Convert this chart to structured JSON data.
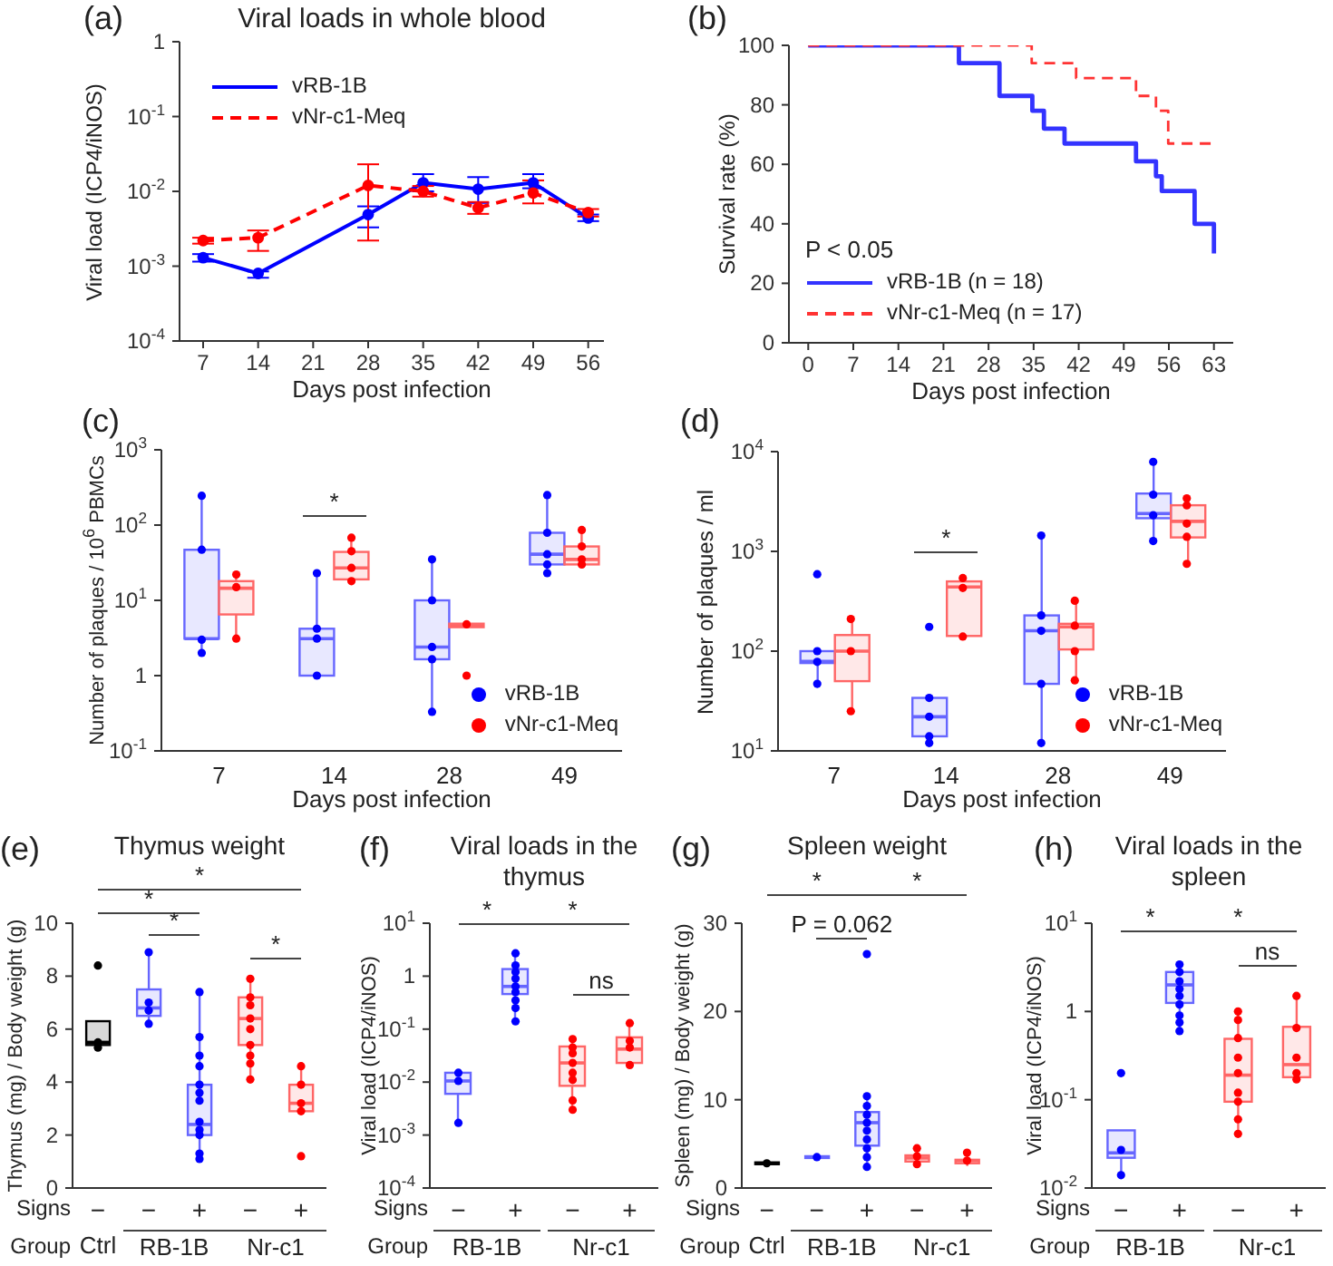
{
  "chart_data": [
    {
      "type": "line",
      "title": "Viral loads in whole blood",
      "xlabel": "Days post infection",
      "ylabel": "Viral load (ICP4/iNOS)",
      "log": true,
      "legend": "top left",
      "marker": "circle",
      "xlim": [
        4,
        58
      ],
      "xticks": [
        7,
        14,
        21,
        28,
        35,
        42,
        49,
        56
      ],
      "ylim": [
        0.0001,
        1
      ],
      "yticks": [
        {
          "value": 0.0001,
          "label": "10$^{-4}$"
        },
        {
          "value": 0.001,
          "label": "10$^{-3}$"
        },
        {
          "value": 0.01,
          "label": "10$^{-2}$"
        },
        {
          "value": 0.1,
          "label": "10$^{-1}$"
        },
        1
      ],
      "annotations": [
        "(a)"
      ],
      "series": [
        {
          "name": "vRB-1B",
          "color": "#0000ff",
          "line_style": "solid",
          "x": [
            7,
            14,
            28,
            35,
            42,
            49,
            56
          ],
          "values": [
            0.0013,
            0.0008,
            0.0049,
            0.013,
            0.0107,
            0.013,
            0.0044
          ],
          "errors": [
            [
              0.00115,
              0.00145
            ],
            [
              0.0007,
              0.00085
            ],
            [
              0.0033,
              0.0063
            ],
            [
              0.01,
              0.017
            ],
            [
              0.007,
              0.0155
            ],
            [
              0.011,
              0.017
            ],
            [
              0.004,
              0.0049
            ]
          ]
        },
        {
          "name": "vNr-c1-Meq",
          "color": "#ff0000",
          "line_style": "dashed",
          "x": [
            7,
            14,
            28,
            35,
            42,
            49,
            56
          ],
          "values": [
            0.0022,
            0.0024,
            0.012,
            0.01,
            0.006,
            0.0095,
            0.0052
          ],
          "errors": [
            [
              0.002,
              0.0024
            ],
            [
              0.0016,
              0.003
            ],
            [
              0.0022,
              0.023
            ],
            [
              0.0085,
              0.0118
            ],
            [
              0.005,
              0.0072
            ],
            [
              0.0069,
              0.014
            ],
            [
              0.0046,
              0.0058
            ]
          ]
        }
      ]
    },
    {
      "type": "step",
      "xlabel": "Days post infection",
      "ylabel": "Survival rate (%)",
      "legend": "bottom left",
      "xlim": [
        -3,
        66
      ],
      "xticks": [
        0,
        7,
        14,
        21,
        28,
        35,
        42,
        49,
        56,
        63
      ],
      "ylim": [
        0,
        100
      ],
      "yticks": [
        0,
        20,
        40,
        60,
        80,
        100
      ],
      "annotations": [
        "(b)",
        "P < 0.05"
      ],
      "series": [
        {
          "name": "vRB-1B (n = 18)",
          "color": "#3333ff",
          "line_style": "solid",
          "x": [
            0,
            23.4,
            29.7,
            34.8,
            36.6,
            39.8,
            50.9,
            54,
            54.9,
            60,
            63
          ],
          "values": [
            100,
            94,
            83,
            78,
            72,
            67,
            61,
            56,
            51,
            40,
            30
          ]
        },
        {
          "name": "vNr-c1-Meq (n = 17)",
          "color": "#ff3333",
          "line_style": "dashed",
          "x": [
            0,
            34.7,
            41.6,
            50.9,
            54,
            55.9,
            63
          ],
          "values": [
            100,
            94,
            89,
            83,
            78,
            67,
            67
          ]
        }
      ]
    },
    {
      "type": "box",
      "xlabel": "Days post infection",
      "ylabel": "Number of plaques / 10$^{6}$ PBMCs",
      "log": true,
      "legend": "bottom right",
      "marker": "circle",
      "categories": [
        "7",
        "14",
        "28",
        "49"
      ],
      "ylim": [
        0.1,
        1000
      ],
      "yticks": [
        {
          "value": 0.1,
          "label": "10$^{-1}$"
        },
        1,
        {
          "value": 10,
          "label": "10$^{1}$"
        },
        {
          "value": 100,
          "label": "10$^{2}$"
        },
        {
          "value": 1000,
          "label": "10$^{3}$"
        }
      ],
      "annotations": [
        "(c)",
        "*"
      ],
      "series": [
        {
          "type": "box",
          "color": "#6666ff",
          "boxes": [
            {
              "low": 2,
              "q1": 3.1,
              "median": 3.1,
              "q3": 47,
              "high": 245
            },
            {
              "low": 1,
              "q1": 1,
              "median": 3.1,
              "q3": 4.2,
              "high": 23
            },
            {
              "low": 0.33,
              "q1": 1.65,
              "median": 2.4,
              "q3": 10,
              "high": 35
            },
            {
              "low": 23,
              "q1": 30,
              "median": 41,
              "q3": 79,
              "high": 250
            }
          ]
        },
        {
          "type": "box",
          "color": "#ff6666",
          "boxes": [
            {
              "low": 3.1,
              "q1": 6.5,
              "median": 14.5,
              "q3": 18,
              "high": 22
            },
            {
              "low": 17,
              "q1": 19,
              "median": 27,
              "q3": 44,
              "high": 68
            },
            {
              "low": 4.3,
              "q1": 4.4,
              "median": 4.6,
              "q3": 4.9,
              "high": 5.2
            },
            {
              "low": 30,
              "q1": 30,
              "median": 35,
              "q3": 52,
              "high": 86
            }
          ]
        },
        {
          "type": "scatter",
          "name": "vRB-1B",
          "color": "#0000ff",
          "x": [
            "7",
            "7",
            "7",
            "7",
            "14",
            "14",
            "14",
            "14",
            "28",
            "28",
            "28",
            "28",
            "28",
            "49",
            "49",
            "49",
            "49",
            "49"
          ],
          "values": [
            245,
            47,
            3,
            2,
            23,
            4.2,
            3.1,
            1,
            35,
            10,
            2.4,
            1.65,
            0.33,
            250,
            79,
            41,
            30,
            23
          ]
        },
        {
          "type": "scatter",
          "name": "vNr-c1-Meq",
          "color": "#ff0000",
          "x": [
            "7",
            "7",
            "7",
            "14",
            "14",
            "14",
            "14",
            "28",
            "28",
            "49",
            "49",
            "49",
            "49"
          ],
          "values": [
            22,
            15,
            3.1,
            68,
            45,
            27,
            18,
            4.8,
            1,
            86,
            52,
            35,
            30
          ]
        }
      ]
    },
    {
      "type": "box",
      "xlabel": "Days post infection",
      "ylabel": "Number of plaques / ml",
      "log": true,
      "legend": "bottom right",
      "marker": "circle",
      "categories": [
        "7",
        "14",
        "28",
        "49"
      ],
      "ylim": [
        10,
        10000
      ],
      "yticks": [
        {
          "value": 10,
          "label": "10$^{1}$"
        },
        {
          "value": 100,
          "label": "10$^{2}$"
        },
        {
          "value": 1000,
          "label": "10$^{3}$"
        },
        {
          "value": 10000,
          "label": "10$^{4}$"
        }
      ],
      "annotations": [
        "(d)",
        "*"
      ],
      "series": [
        {
          "type": "box",
          "color": "#6666ff",
          "boxes": [
            {
              "low": 47,
              "q1": 76,
              "median": 79,
              "q3": 100,
              "high": 100
            },
            {
              "low": 12,
              "q1": 14,
              "median": 22,
              "q3": 34,
              "high": 34
            },
            {
              "low": 12,
              "q1": 47,
              "median": 160,
              "q3": 228,
              "high": 1440
            },
            {
              "low": 1270,
              "q1": 2150,
              "median": 2400,
              "q3": 3800,
              "high": 7900
            }
          ]
        },
        {
          "type": "box",
          "color": "#ff6666",
          "boxes": [
            {
              "low": 25,
              "q1": 50,
              "median": 100,
              "q3": 145,
              "high": 210
            },
            {
              "low": 132,
              "q1": 142,
              "median": 440,
              "q3": 500,
              "high": 560
            },
            {
              "low": 51,
              "q1": 104,
              "median": 175,
              "q3": 188,
              "high": 320
            },
            {
              "low": 750,
              "q1": 1380,
              "median": 2000,
              "q3": 2900,
              "high": 3500
            }
          ]
        },
        {
          "type": "scatter",
          "name": "vRB-1B",
          "color": "#0000ff",
          "x": [
            "7",
            "7",
            "7",
            "7",
            "14",
            "14",
            "14",
            "14",
            "14",
            "28",
            "28",
            "28",
            "28",
            "28",
            "49",
            "49",
            "49",
            "49"
          ],
          "values": [
            590,
            100,
            78,
            47,
            175,
            34,
            22,
            14,
            12,
            1440,
            228,
            160,
            47,
            12,
            7900,
            3700,
            2300,
            1270
          ]
        },
        {
          "type": "scatter",
          "name": "vNr-c1-Meq",
          "color": "#ff0000",
          "x": [
            "7",
            "7",
            "7",
            "14",
            "14",
            "14",
            "28",
            "28",
            "28",
            "28",
            "49",
            "49",
            "49",
            "49",
            "49"
          ],
          "values": [
            210,
            100,
            25,
            540,
            430,
            140,
            320,
            180,
            100,
            51,
            3400,
            2900,
            1900,
            1400,
            750
          ]
        }
      ]
    },
    {
      "type": "box",
      "title": "Thymus weight",
      "ylabel": "Thymus (mg) / Body weight (g)",
      "marker": "circle",
      "categories": [
        "−",
        "−",
        "+",
        "−",
        "+"
      ],
      "ylim": [
        0,
        10
      ],
      "yticks": [
        0,
        2,
        4,
        6,
        8,
        10
      ],
      "annotations": [
        "(e)",
        "*",
        "*",
        "*",
        "*",
        "Signs",
        "Group",
        "Ctrl",
        "RB-1B",
        "Nr-c1"
      ],
      "series": [
        {
          "type": "box",
          "colors": [
            "#000000",
            "#6666ff",
            "#6666ff",
            "#ff6666",
            "#ff6666"
          ],
          "boxes": [
            {
              "low": 5.3,
              "q1": 5.4,
              "median": 5.5,
              "q3": 6.3,
              "high": 6.3
            },
            {
              "low": 6.1,
              "q1": 6.5,
              "median": 6.8,
              "q3": 7.5,
              "high": 8.9
            },
            {
              "low": 1.1,
              "q1": 2,
              "median": 2.4,
              "q3": 3.9,
              "high": 7.4
            },
            {
              "low": 4.1,
              "q1": 5.4,
              "median": 6.4,
              "q3": 7.2,
              "high": 7.9
            },
            {
              "low": 2.9,
              "q1": 2.9,
              "median": 3.2,
              "q3": 3.9,
              "high": 4.6
            }
          ]
        },
        {
          "type": "scatter",
          "colors": [
            "#000000",
            "#0000ff",
            "#0000ff",
            "#ff0000",
            "#ff0000"
          ],
          "values": [
            8.4,
            8.9,
            7.4,
            7.9,
            4.6
          ]
        },
        {
          "type": "scatter",
          "colors": [
            "#000000",
            "#0000ff",
            "#0000ff",
            "#ff0000",
            "#ff0000"
          ],
          "values": [
            5.5,
            7,
            5.7,
            7.2,
            3.9
          ]
        },
        {
          "type": "scatter",
          "colors": [
            "#000000",
            "#0000ff",
            "#0000ff",
            "#ff0000",
            "#ff0000"
          ],
          "values": [
            5.3,
            6.7,
            5,
            6.9,
            3.2
          ]
        },
        {
          "type": "scatter",
          "colors": [
            null,
            "#0000ff",
            "#0000ff",
            "#ff0000",
            "#ff0000"
          ],
          "values": [
            null,
            6.2,
            4.6,
            6.4,
            2.9
          ]
        },
        {
          "type": "scatter",
          "colors": [
            null,
            null,
            "#0000ff",
            "#ff0000",
            "#ff0000"
          ],
          "values": [
            null,
            null,
            3.9,
            6,
            1.2
          ]
        },
        {
          "type": "scatter",
          "colors": [
            null,
            null,
            "#0000ff",
            "#ff0000",
            null
          ],
          "values": [
            null,
            null,
            3.6,
            5.4,
            null
          ]
        },
        {
          "type": "scatter",
          "colors": [
            null,
            null,
            "#0000ff",
            "#ff0000",
            null
          ],
          "values": [
            null,
            null,
            3.3,
            5,
            null
          ]
        },
        {
          "type": "scatter",
          "colors": [
            null,
            null,
            "#0000ff",
            "#ff0000",
            null
          ],
          "values": [
            null,
            null,
            2.5,
            4.7,
            null
          ]
        },
        {
          "type": "scatter",
          "colors": [
            null,
            null,
            "#0000ff",
            "#ff0000",
            null
          ],
          "values": [
            null,
            null,
            2.2,
            4.1,
            null
          ]
        },
        {
          "type": "scatter",
          "colors": [
            null,
            null,
            "#0000ff",
            null,
            null
          ],
          "values": [
            null,
            null,
            2,
            null,
            null
          ]
        },
        {
          "type": "scatter",
          "colors": [
            null,
            null,
            "#0000ff",
            null,
            null
          ],
          "values": [
            null,
            null,
            1.3,
            null,
            null
          ]
        },
        {
          "type": "scatter",
          "colors": [
            null,
            null,
            "#0000ff",
            null,
            null
          ],
          "values": [
            null,
            null,
            1.1,
            null,
            null
          ]
        }
      ]
    },
    {
      "type": "box",
      "title": "Viral loads in the thymus",
      "ylabel": "Viral load (ICP4/iNOS)",
      "log": true,
      "marker": "circle",
      "categories": [
        "−",
        "+",
        "−",
        "+"
      ],
      "ylim": [
        0.0001,
        10
      ],
      "yticks": [
        {
          "value": 0.0001,
          "label": "10$^{-4}$"
        },
        {
          "value": 0.001,
          "label": "10$^{-3}$"
        },
        {
          "value": 0.01,
          "label": "10$^{-2}$"
        },
        {
          "value": 0.1,
          "label": "10$^{-1}$"
        },
        1,
        {
          "value": 10,
          "label": "10$^{1}$"
        }
      ],
      "annotations": [
        "(f)",
        "*",
        "*",
        "ns",
        "Signs",
        "Group",
        "RB-1B",
        "Nr-c1"
      ],
      "series": [
        {
          "type": "box",
          "colors": [
            "#6666ff",
            "#6666ff",
            "#ff6666",
            "#ff6666"
          ],
          "boxes": [
            {
              "low": 0.0017,
              "q1": 0.006,
              "median": 0.0105,
              "q3": 0.015,
              "high": 0.015
            },
            {
              "low": 0.14,
              "q1": 0.46,
              "median": 0.64,
              "q3": 1.36,
              "high": 2.7
            },
            {
              "low": 0.003,
              "q1": 0.0085,
              "median": 0.023,
              "q3": 0.047,
              "high": 0.065
            },
            {
              "low": 0.02,
              "q1": 0.023,
              "median": 0.042,
              "q3": 0.07,
              "high": 0.13
            }
          ]
        },
        {
          "type": "scatter",
          "colors": [
            "#0000ff",
            "#0000ff",
            "#ff0000",
            "#ff0000"
          ],
          "values": [
            0.015,
            2.7,
            0.065,
            0.13
          ]
        },
        {
          "type": "scatter",
          "colors": [
            "#0000ff",
            null,
            "#ff0000",
            "#ff0000"
          ],
          "values": [
            0.0105,
            null,
            0.045,
            0.06
          ]
        },
        {
          "type": "scatter",
          "colors": [
            "#0000ff",
            "#0000ff",
            "#ff0000",
            "#ff0000"
          ],
          "values": [
            0.0017,
            1.6,
            0.035,
            0.045
          ]
        },
        {
          "type": "scatter",
          "colors": [
            null,
            "#0000ff",
            "#ff0000",
            "#ff0000"
          ],
          "values": [
            null,
            1.2,
            0.023,
            0.021
          ]
        },
        {
          "type": "scatter",
          "colors": [
            null,
            "#0000ff",
            "#ff0000",
            null
          ],
          "values": [
            null,
            0.9,
            0.015,
            null
          ]
        },
        {
          "type": "scatter",
          "colors": [
            null,
            "#0000ff",
            "#ff0000",
            null
          ],
          "values": [
            null,
            0.64,
            0.011,
            null
          ]
        },
        {
          "type": "scatter",
          "colors": [
            null,
            "#0000ff",
            "#ff0000",
            null
          ],
          "values": [
            null,
            0.5,
            0.0045,
            null
          ]
        },
        {
          "type": "scatter",
          "colors": [
            null,
            "#0000ff",
            "#ff0000",
            null
          ],
          "values": [
            null,
            0.35,
            0.003,
            null
          ]
        },
        {
          "type": "scatter",
          "colors": [
            null,
            "#0000ff",
            null,
            null
          ],
          "values": [
            null,
            0.25,
            null,
            null
          ]
        },
        {
          "type": "scatter",
          "colors": [
            null,
            "#0000ff",
            null,
            null
          ],
          "values": [
            null,
            0.14,
            null,
            null
          ]
        }
      ]
    },
    {
      "type": "box",
      "title": "Spleen weight",
      "ylabel": "Spleen (mg) / Body weight (g)",
      "marker": "circle",
      "categories": [
        "−",
        "−",
        "+",
        "−",
        "+"
      ],
      "ylim": [
        0,
        30
      ],
      "yticks": [
        0,
        10,
        20,
        30
      ],
      "annotations": [
        "(g)",
        "*",
        "*",
        "P = 0.062",
        "Signs",
        "Group",
        "Ctrl",
        "RB-1B",
        "Nr-c1"
      ],
      "series": [
        {
          "type": "box",
          "colors": [
            "#000000",
            "#6666ff",
            "#6666ff",
            "#ff6666",
            "#ff6666"
          ],
          "boxes": [
            {
              "low": 2.6,
              "q1": 2.7,
              "median": 2.8,
              "q3": 2.9,
              "high": 3.1
            },
            {
              "low": 3.2,
              "q1": 3.4,
              "median": 3.5,
              "q3": 3.6,
              "high": 3.8
            },
            {
              "low": 2.3,
              "q1": 4.8,
              "median": 7.4,
              "q3": 8.6,
              "high": 10.5
            },
            {
              "low": 2.7,
              "q1": 3,
              "median": 3.4,
              "q3": 3.7,
              "high": 4.5
            },
            {
              "low": 2.5,
              "q1": 2.8,
              "median": 3.1,
              "q3": 3.2,
              "high": 4
            }
          ]
        },
        {
          "type": "scatter",
          "colors": [
            "#000000",
            "#0000ff",
            "#0000ff",
            "#ff0000",
            "#ff0000"
          ],
          "values": [
            2.8,
            3.5,
            26.5,
            4.5,
            4
          ]
        },
        {
          "type": "scatter",
          "colors": [
            null,
            null,
            "#0000ff",
            "#ff0000",
            "#ff0000"
          ],
          "values": [
            null,
            null,
            10.4,
            3.6,
            3.1
          ]
        },
        {
          "type": "scatter",
          "colors": [
            null,
            null,
            "#0000ff",
            "#ff0000",
            null
          ],
          "values": [
            null,
            null,
            9.3,
            2.7,
            null
          ]
        },
        {
          "type": "scatter",
          "colors": [
            null,
            null,
            "#0000ff",
            null,
            null
          ],
          "values": [
            null,
            null,
            8.3,
            null,
            null
          ]
        },
        {
          "type": "scatter",
          "colors": [
            null,
            null,
            "#0000ff",
            null,
            null
          ],
          "values": [
            null,
            null,
            7.4,
            null,
            null
          ]
        },
        {
          "type": "scatter",
          "colors": [
            null,
            null,
            "#0000ff",
            null,
            null
          ],
          "values": [
            null,
            null,
            6.5,
            null,
            null
          ]
        },
        {
          "type": "scatter",
          "colors": [
            null,
            null,
            "#0000ff",
            null,
            null
          ],
          "values": [
            null,
            null,
            5.5,
            null,
            null
          ]
        },
        {
          "type": "scatter",
          "colors": [
            null,
            null,
            "#0000ff",
            null,
            null
          ],
          "values": [
            null,
            null,
            4.5,
            null,
            null
          ]
        },
        {
          "type": "scatter",
          "colors": [
            null,
            null,
            "#0000ff",
            null,
            null
          ],
          "values": [
            null,
            null,
            3.5,
            null,
            null
          ]
        },
        {
          "type": "scatter",
          "colors": [
            null,
            null,
            "#0000ff",
            null,
            null
          ],
          "values": [
            null,
            null,
            2.4,
            null,
            null
          ]
        }
      ]
    },
    {
      "type": "box",
      "title": "Viral loads in the spleen",
      "ylabel": "Viral load (ICP4/iNOS)",
      "log": true,
      "marker": "circle",
      "categories": [
        "−",
        "+",
        "−",
        "+"
      ],
      "ylim": [
        0.01,
        10
      ],
      "yticks": [
        {
          "value": 0.01,
          "label": "10$^{-2}$"
        },
        {
          "value": 0.1,
          "label": "10$^{-1}$"
        },
        1,
        {
          "value": 10,
          "label": "10$^{1}$"
        }
      ],
      "annotations": [
        "(h)",
        "*",
        "*",
        "ns",
        "Signs",
        "Group",
        "RB-1B",
        "Nr-c1"
      ],
      "series": [
        {
          "type": "box",
          "colors": [
            "#6666ff",
            "#6666ff",
            "#ff6666",
            "#ff6666"
          ],
          "boxes": [
            {
              "low": 0.014,
              "q1": 0.022,
              "median": 0.025,
              "q3": 0.045,
              "high": 0.045
            },
            {
              "low": 0.6,
              "q1": 1.25,
              "median": 2,
              "q3": 2.8,
              "high": 3.5
            },
            {
              "low": 0.041,
              "q1": 0.095,
              "median": 0.19,
              "q3": 0.49,
              "high": 1
            },
            {
              "low": 0.17,
              "q1": 0.18,
              "median": 0.25,
              "q3": 0.67,
              "high": 1.5
            }
          ]
        },
        {
          "type": "scatter",
          "colors": [
            "#0000ff",
            "#0000ff",
            "#ff0000",
            "#ff0000"
          ],
          "values": [
            0.2,
            3.4,
            1,
            1.5
          ]
        },
        {
          "type": "scatter",
          "colors": [
            "#0000ff",
            "#0000ff",
            "#ff0000",
            "#ff0000"
          ],
          "values": [
            0.027,
            2.8,
            0.8,
            0.65
          ]
        },
        {
          "type": "scatter",
          "colors": [
            "#0000ff",
            "#0000ff",
            "#ff0000",
            "#ff0000"
          ],
          "values": [
            0.014,
            2.2,
            0.5,
            0.3
          ]
        },
        {
          "type": "scatter",
          "colors": [
            null,
            "#0000ff",
            "#ff0000",
            "#ff0000"
          ],
          "values": [
            null,
            1.8,
            0.3,
            0.2
          ]
        },
        {
          "type": "scatter",
          "colors": [
            null,
            "#0000ff",
            "#ff0000",
            "#ff0000"
          ],
          "values": [
            null,
            1.5,
            0.2,
            0.17
          ]
        },
        {
          "type": "scatter",
          "colors": [
            null,
            "#0000ff",
            "#ff0000",
            null
          ],
          "values": [
            null,
            1.2,
            0.12,
            null
          ]
        },
        {
          "type": "scatter",
          "colors": [
            null,
            "#0000ff",
            "#ff0000",
            null
          ],
          "values": [
            null,
            0.9,
            0.095,
            null
          ]
        },
        {
          "type": "scatter",
          "colors": [
            null,
            "#0000ff",
            "#ff0000",
            null
          ],
          "values": [
            null,
            0.75,
            0.06,
            null
          ]
        },
        {
          "type": "scatter",
          "colors": [
            null,
            "#0000ff",
            "#ff0000",
            null
          ],
          "values": [
            null,
            0.6,
            0.041,
            null
          ]
        }
      ]
    }
  ]
}
